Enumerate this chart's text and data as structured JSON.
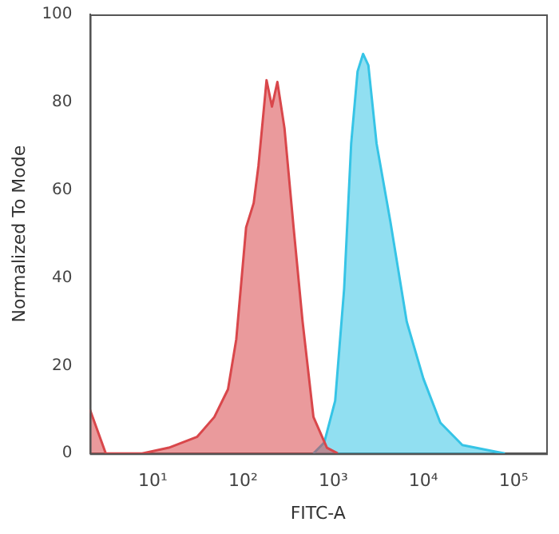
{
  "chart_data": {
    "type": "area",
    "xlabel": "FITC-A",
    "ylabel": "Normalized To Mode",
    "log": "x",
    "grid": false,
    "legend": false,
    "xlim": [
      2,
      230000
    ],
    "ylim": [
      0,
      100
    ],
    "xticks": [
      {
        "value": 10,
        "label": "10¹"
      },
      {
        "value": 100,
        "label": "10²"
      },
      {
        "value": 1000,
        "label": "10³"
      },
      {
        "value": 10000,
        "label": "10⁴"
      },
      {
        "value": 100000,
        "label": "10⁵"
      }
    ],
    "yticks": [
      0,
      20,
      40,
      60,
      80,
      100
    ],
    "series": [
      {
        "color": "#d9474b",
        "x": [
          2,
          3,
          7.6,
          15,
          31,
          48,
          68,
          84,
          108,
          131,
          148,
          182,
          209,
          240,
          288,
          363,
          457,
          603,
          851,
          1120
        ],
        "values": [
          10,
          0,
          0,
          1.3,
          3.8,
          8.3,
          14.6,
          26,
          51.5,
          57,
          65.5,
          85,
          79,
          84.6,
          74,
          51.5,
          30,
          8.3,
          1.3,
          0
        ]
      },
      {
        "color": "#36c4e6",
        "x": [
          603,
          795,
          1050,
          1320,
          1580,
          1860,
          2140,
          2450,
          3020,
          4300,
          6530,
          10000,
          15400,
          27000,
          63000,
          80000
        ],
        "values": [
          0,
          2.5,
          12,
          37.5,
          70.6,
          87,
          91,
          88.4,
          70.6,
          52.8,
          30,
          17,
          7,
          1.9,
          0.4,
          0
        ]
      }
    ]
  }
}
